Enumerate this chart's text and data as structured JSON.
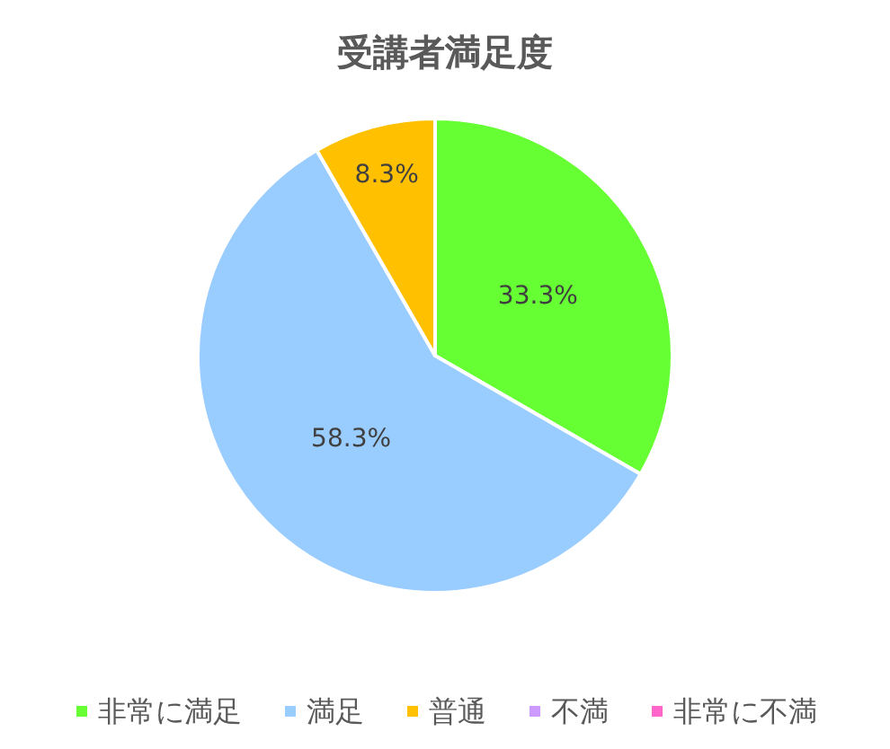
{
  "chart_data": {
    "type": "pie",
    "title": "受講者満足度",
    "categories": [
      "非常に満足",
      "満足",
      "普通",
      "不満",
      "非常に不満"
    ],
    "values": [
      33.3,
      58.3,
      8.3,
      0,
      0
    ],
    "colors": [
      "#66ff33",
      "#99ccff",
      "#ffc000",
      "#cc99ff",
      "#ff66cc"
    ],
    "value_labels": [
      "33.3%",
      "58.3%",
      "8.3%",
      null,
      null
    ],
    "legend": "bottom"
  }
}
